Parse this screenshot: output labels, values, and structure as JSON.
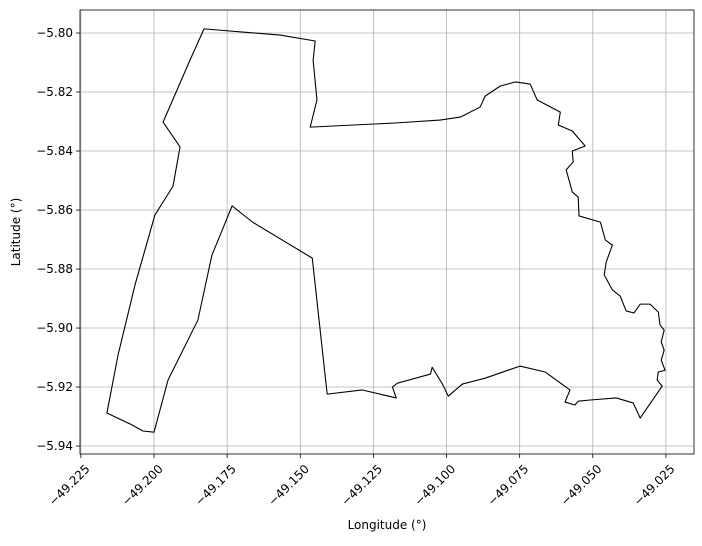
{
  "chart_data": {
    "type": "polygon",
    "xlabel": "Longitude (°)",
    "ylabel": "Latitude (°)",
    "color": "#000000",
    "grid": true,
    "xlim": [
      -49.2253,
      -49.0154
    ],
    "ylim": [
      -5.9427,
      -5.7922
    ],
    "xticks": [
      {
        "value": -49.225,
        "label": "−49.225"
      },
      {
        "value": -49.2,
        "label": "−49.200"
      },
      {
        "value": -49.175,
        "label": "−49.175"
      },
      {
        "value": -49.15,
        "label": "−49.150"
      },
      {
        "value": -49.125,
        "label": "−49.125"
      },
      {
        "value": -49.1,
        "label": "−49.100"
      },
      {
        "value": -49.075,
        "label": "−49.075"
      },
      {
        "value": -49.05,
        "label": "−49.050"
      },
      {
        "value": -49.025,
        "label": "−49.025"
      }
    ],
    "yticks": [
      {
        "value": -5.8,
        "label": "−5.80"
      },
      {
        "value": -5.82,
        "label": "−5.82"
      },
      {
        "value": -5.84,
        "label": "−5.84"
      },
      {
        "value": -5.86,
        "label": "−5.86"
      },
      {
        "value": -5.88,
        "label": "−5.88"
      },
      {
        "value": -5.9,
        "label": "−5.90"
      },
      {
        "value": -5.92,
        "label": "−5.92"
      },
      {
        "value": -5.94,
        "label": "−5.94"
      }
    ],
    "x": [
      -49.1829,
      -49.1569,
      -49.1449,
      -49.1456,
      -49.1443,
      -49.1466,
      -49.1176,
      -49.1022,
      -49.0953,
      -49.0885,
      -49.0868,
      -49.0817,
      -49.0765,
      -49.0714,
      -49.069,
      -49.0611,
      -49.0618,
      -49.057,
      -49.0526,
      -49.057,
      -49.0567,
      -49.0591,
      -49.057,
      -49.055,
      -49.0547,
      -49.0474,
      -49.0457,
      -49.0433,
      -49.0454,
      -49.0461,
      -49.0433,
      -49.0406,
      -49.0386,
      -49.0359,
      -49.0338,
      -49.0304,
      -49.0276,
      -49.027,
      -49.0256,
      -49.0266,
      -49.0256,
      -49.0266,
      -49.0253,
      -49.0276,
      -49.028,
      -49.0263,
      -49.0338,
      -49.0362,
      -49.042,
      -49.0509,
      -49.055,
      -49.0561,
      -49.0595,
      -49.0578,
      -49.0663,
      -49.0749,
      -49.0868,
      -49.0946,
      -49.0994,
      -49.1014,
      -49.1049,
      -49.1055,
      -49.1168,
      -49.1185,
      -49.1172,
      -49.1288,
      -49.1408,
      -49.1459,
      -49.1663,
      -49.1733,
      -49.1802,
      -49.185,
      -49.1952,
      -49.2,
      -49.2038,
      -49.2082,
      -49.2161,
      -49.2123,
      -49.2065,
      -49.1997,
      -49.1935,
      -49.1911,
      -49.1969,
      -49.1877,
      -49.1829
    ],
    "values": [
      -5.7986,
      -5.8007,
      -5.8027,
      -5.8092,
      -5.8227,
      -5.8319,
      -5.8305,
      -5.8295,
      -5.8285,
      -5.8251,
      -5.8214,
      -5.818,
      -5.8166,
      -5.8173,
      -5.8227,
      -5.8268,
      -5.8312,
      -5.8332,
      -5.8383,
      -5.84,
      -5.8437,
      -5.8464,
      -5.8539,
      -5.8556,
      -5.862,
      -5.8641,
      -5.8702,
      -5.8719,
      -5.8776,
      -5.882,
      -5.8871,
      -5.8892,
      -5.8942,
      -5.8949,
      -5.8919,
      -5.8919,
      -5.8946,
      -5.899,
      -5.9007,
      -5.9047,
      -5.9075,
      -5.9109,
      -5.9143,
      -5.9149,
      -5.9176,
      -5.9197,
      -5.9305,
      -5.9254,
      -5.9237,
      -5.9244,
      -5.9248,
      -5.9261,
      -5.9251,
      -5.921,
      -5.9149,
      -5.9129,
      -5.917,
      -5.919,
      -5.9231,
      -5.919,
      -5.9133,
      -5.9156,
      -5.9187,
      -5.92,
      -5.9237,
      -5.921,
      -5.9224,
      -5.8763,
      -5.8641,
      -5.8586,
      -5.8753,
      -5.8973,
      -5.9176,
      -5.9353,
      -5.9349,
      -5.9325,
      -5.9288,
      -5.9092,
      -5.8854,
      -5.8617,
      -5.8519,
      -5.8386,
      -5.8302,
      -5.8092,
      -5.7986
    ]
  }
}
